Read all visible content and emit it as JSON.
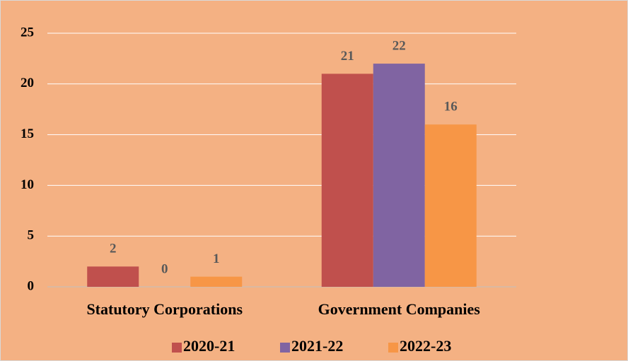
{
  "chart_data": {
    "type": "bar",
    "categories": [
      "Statutory Corporations",
      "Government Companies"
    ],
    "series": [
      {
        "name": "2020-21",
        "color": "#C0504D",
        "values": [
          2,
          21
        ]
      },
      {
        "name": "2021-22",
        "color": "#8064A2",
        "values": [
          0,
          22
        ]
      },
      {
        "name": "2022-23",
        "color": "#F79646",
        "values": [
          1,
          16
        ]
      }
    ],
    "ylim": [
      0,
      25
    ],
    "yticks": [
      0,
      5,
      10,
      15,
      20,
      25
    ],
    "grid": true,
    "legend": "bottom"
  }
}
